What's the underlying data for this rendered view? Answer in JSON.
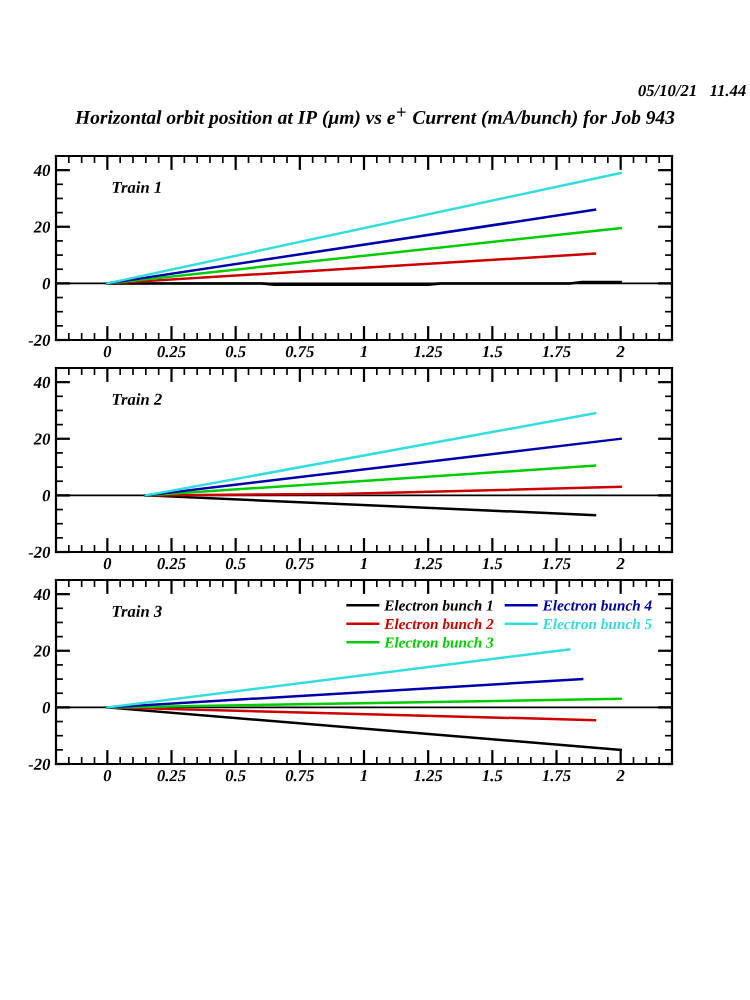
{
  "chart_data": [
    {
      "type": "line",
      "title": "Horizontal orbit position at IP (μm) vs e$^{+}$ Current (mA/bunch) for Job 943",
      "annotations": [
        "05/10/21   11.44",
        "Train 1"
      ],
      "xlim": [
        -0.2,
        2.2
      ],
      "ylim": [
        -20,
        45
      ],
      "xticks": [
        {
          "value": 0,
          "label": "0"
        },
        0.25,
        0.5,
        0.75,
        {
          "value": 1,
          "label": "1"
        },
        1.25,
        1.5,
        1.75,
        {
          "value": 2,
          "label": "2"
        }
      ],
      "yticks": [
        -20,
        0,
        20,
        40
      ],
      "ref_lines": [
        {
          "axis": "y",
          "value": 0,
          "color": "#000000"
        }
      ],
      "grid": false,
      "legend": false,
      "series": [
        {
          "color": "#000000",
          "x": [
            0,
            0.6,
            0.65,
            1.25,
            1.3,
            1.8,
            1.85,
            2
          ],
          "values": [
            0,
            0,
            -0.5,
            -0.5,
            0,
            0,
            0.5,
            0.5
          ]
        },
        {
          "color": "#cc0000",
          "x": [
            0,
            1.9
          ],
          "values": [
            0,
            10.5
          ]
        },
        {
          "color": "#00cc00",
          "x": [
            0,
            2
          ],
          "values": [
            0,
            19.5
          ]
        },
        {
          "color": "#0000aa",
          "x": [
            0,
            1.9
          ],
          "values": [
            0,
            26
          ]
        },
        {
          "color": "#33dddd",
          "x": [
            0,
            2
          ],
          "values": [
            0,
            39
          ]
        }
      ]
    },
    {
      "type": "line",
      "annotations": [
        "Train 2"
      ],
      "xlim": [
        -0.2,
        2.2
      ],
      "ylim": [
        -20,
        45
      ],
      "xticks": [
        {
          "value": 0,
          "label": "0"
        },
        0.25,
        0.5,
        0.75,
        {
          "value": 1,
          "label": "1"
        },
        1.25,
        1.5,
        1.75,
        {
          "value": 2,
          "label": "2"
        }
      ],
      "yticks": [
        -20,
        0,
        20,
        40
      ],
      "ref_lines": [
        {
          "axis": "y",
          "value": 0,
          "color": "#000000"
        }
      ],
      "grid": false,
      "legend": false,
      "series": [
        {
          "color": "#000000",
          "x": [
            0.15,
            1.9
          ],
          "values": [
            0,
            -7
          ]
        },
        {
          "color": "#cc0000",
          "x": [
            0.15,
            0.9,
            2
          ],
          "values": [
            0,
            0.5,
            3
          ]
        },
        {
          "color": "#00cc00",
          "x": [
            0.15,
            1.9
          ],
          "values": [
            0,
            10.5
          ]
        },
        {
          "color": "#0000aa",
          "x": [
            0.15,
            2
          ],
          "values": [
            0,
            20
          ]
        },
        {
          "color": "#33dddd",
          "x": [
            0.15,
            1.9
          ],
          "values": [
            0,
            29
          ]
        }
      ]
    },
    {
      "type": "line",
      "annotations": [
        "Train 3"
      ],
      "xlim": [
        -0.2,
        2.2
      ],
      "ylim": [
        -20,
        45
      ],
      "xticks": [
        {
          "value": 0,
          "label": "0"
        },
        0.25,
        0.5,
        0.75,
        {
          "value": 1,
          "label": "1"
        },
        1.25,
        1.5,
        1.75,
        {
          "value": 2,
          "label": "2"
        }
      ],
      "yticks": [
        -20,
        0,
        20,
        40
      ],
      "ref_lines": [
        {
          "axis": "y",
          "value": 0,
          "color": "#000000"
        }
      ],
      "grid": false,
      "legend": "top right",
      "series": [
        {
          "name": "Electron bunch 1",
          "color": "#000000",
          "x": [
            0,
            2
          ],
          "values": [
            0,
            -15
          ]
        },
        {
          "name": "Electron bunch 2",
          "color": "#cc0000",
          "x": [
            0,
            1.9
          ],
          "values": [
            0,
            -4.5
          ]
        },
        {
          "name": "Electron bunch 3",
          "color": "#00cc00",
          "x": [
            0,
            2
          ],
          "values": [
            0,
            3
          ]
        },
        {
          "name": "Electron bunch 4",
          "color": "#0000aa",
          "x": [
            0,
            1.85
          ],
          "values": [
            0,
            10
          ]
        },
        {
          "name": "Electron bunch 5",
          "color": "#33dddd",
          "x": [
            0,
            1.8
          ],
          "values": [
            0,
            20.5
          ]
        }
      ]
    }
  ]
}
